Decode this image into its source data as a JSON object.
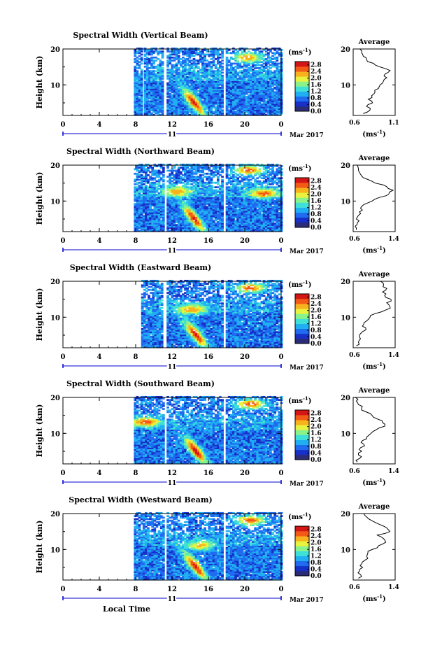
{
  "figure": {
    "xlabel": "Local Time",
    "date_label": "Mar 2017",
    "day_label": "11",
    "ylabel": "Height (km)",
    "avg_title": "Average",
    "colorbar_unit_base": "(ms",
    "colorbar_unit_exp": "-1",
    "colorbar_unit_close": ")",
    "avg_xunit_base": "(ms",
    "avg_xunit_exp": "-1",
    "avg_xunit_close": ")",
    "colorbar_ticks": [
      "2.8",
      "2.4",
      "2.0",
      "1.6",
      "1.2",
      "0.8",
      "0.4",
      "0.0"
    ],
    "colormap": [
      "#2b2c77",
      "#1730c8",
      "#1f6cf0",
      "#20b0f2",
      "#3fe0d8",
      "#8af28a",
      "#e9f23f",
      "#f7b21d",
      "#f35a16",
      "#d41616"
    ],
    "colors": {
      "axis": "#000000",
      "time_bar": "#0000cc",
      "background": "#ffffff"
    }
  },
  "chart_data": [
    {
      "type": "heatmap",
      "title": "Spectral Width (Vertical Beam)",
      "xlabel": "Local Time",
      "ylabel": "Height (km)",
      "x_ticks": [
        "0",
        "4",
        "8",
        "12",
        "16",
        "20",
        "0"
      ],
      "y_ticks": [
        "10",
        "20"
      ],
      "xlim": [
        0,
        24
      ],
      "ylim": [
        1.5,
        20
      ],
      "colorbar_range": [
        0.0,
        3.0
      ],
      "data_blocks_hours": [
        [
          7.8,
          8.7
        ],
        [
          8.9,
          11.0
        ],
        [
          11.4,
          17.6
        ],
        [
          17.9,
          24.0
        ]
      ],
      "hotspots": [
        {
          "t": 14.3,
          "h": 5.0,
          "value": 2.8,
          "label": "tilted streak"
        },
        {
          "t": 20.2,
          "h": 17.5,
          "value": 2.4,
          "label": "upper patch"
        }
      ],
      "average": {
        "title": "Average",
        "xlim": [
          0.6,
          1.1
        ],
        "xticks": [
          "0.6",
          "1.1"
        ],
        "y_ticks": [
          "10",
          "20"
        ],
        "height_km": [
          2,
          3,
          4,
          5,
          6,
          7,
          8,
          9,
          10,
          11,
          12,
          13,
          14,
          15,
          16,
          17,
          18,
          19,
          20
        ],
        "width_ms": [
          0.72,
          0.8,
          0.76,
          0.83,
          0.78,
          0.82,
          0.86,
          0.9,
          0.92,
          0.96,
          1.0,
          0.98,
          1.04,
          0.92,
          0.84,
          0.76,
          0.72,
          0.7,
          0.68
        ]
      }
    },
    {
      "type": "heatmap",
      "title": "Spectral Width (Northward Beam)",
      "xlabel": "Local Time",
      "ylabel": "Height (km)",
      "x_ticks": [
        "0",
        "4",
        "8",
        "12",
        "16",
        "20",
        "0"
      ],
      "y_ticks": [
        "10",
        "20"
      ],
      "xlim": [
        0,
        24
      ],
      "ylim": [
        1.5,
        20
      ],
      "colorbar_range": [
        0.0,
        3.0
      ],
      "data_blocks_hours": [
        [
          7.8,
          11.0
        ],
        [
          11.4,
          17.6
        ],
        [
          17.9,
          24.0
        ]
      ],
      "hotspots": [
        {
          "t": 14.3,
          "h": 5.0,
          "value": 2.8,
          "label": "tilted streak"
        },
        {
          "t": 12.5,
          "h": 12.5,
          "value": 2.4,
          "label": "tropopause layer"
        },
        {
          "t": 22.0,
          "h": 12.0,
          "value": 2.6,
          "label": "evening layer"
        },
        {
          "t": 20.3,
          "h": 18.5,
          "value": 2.6,
          "label": "upper patch"
        }
      ],
      "average": {
        "title": "Average",
        "xlim": [
          0.6,
          1.4
        ],
        "xticks": [
          "0.6",
          "1.4"
        ],
        "y_ticks": [
          "10",
          "20"
        ],
        "height_km": [
          2,
          3,
          4,
          5,
          6,
          7,
          8,
          9,
          10,
          11,
          12,
          13,
          14,
          15,
          16,
          17,
          18,
          19,
          20
        ],
        "width_ms": [
          0.66,
          0.64,
          0.68,
          0.66,
          0.7,
          0.72,
          0.74,
          0.8,
          0.96,
          1.1,
          1.28,
          1.36,
          1.24,
          1.02,
          0.88,
          0.76,
          0.72,
          0.7,
          0.68
        ]
      }
    },
    {
      "type": "heatmap",
      "title": "Spectral Width (Eastward Beam)",
      "xlabel": "Local Time",
      "ylabel": "Height (km)",
      "x_ticks": [
        "0",
        "4",
        "8",
        "12",
        "16",
        "20",
        "0"
      ],
      "y_ticks": [
        "10",
        "20"
      ],
      "xlim": [
        0,
        24
      ],
      "ylim": [
        1.5,
        20
      ],
      "colorbar_range": [
        0.0,
        3.0
      ],
      "data_blocks_hours": [
        [
          8.6,
          11.0
        ],
        [
          11.4,
          17.6
        ],
        [
          17.9,
          24.0
        ]
      ],
      "hotspots": [
        {
          "t": 14.5,
          "h": 5.0,
          "value": 2.8,
          "label": "tilted streak"
        },
        {
          "t": 14.0,
          "h": 12.0,
          "value": 2.4,
          "label": "tropopause layer"
        },
        {
          "t": 20.5,
          "h": 18.0,
          "value": 2.6,
          "label": "upper patch"
        }
      ],
      "average": {
        "title": "Average",
        "xlim": [
          0.6,
          1.4
        ],
        "xticks": [
          "0.6",
          "1.4"
        ],
        "y_ticks": [
          "10",
          "20"
        ],
        "height_km": [
          2,
          3,
          4,
          5,
          6,
          7,
          8,
          9,
          10,
          11,
          12,
          13,
          14,
          15,
          16,
          17,
          18,
          19,
          20
        ],
        "width_ms": [
          0.66,
          0.7,
          0.74,
          0.72,
          0.78,
          0.84,
          0.8,
          0.86,
          0.92,
          1.02,
          1.22,
          1.3,
          1.24,
          1.32,
          1.2,
          1.16,
          1.24,
          1.18,
          1.12
        ]
      }
    },
    {
      "type": "heatmap",
      "title": "Spectral Width (Southward Beam)",
      "xlabel": "Local Time",
      "ylabel": "Height (km)",
      "x_ticks": [
        "0",
        "4",
        "8",
        "12",
        "16",
        "20",
        "0"
      ],
      "y_ticks": [
        "10",
        "20"
      ],
      "xlim": [
        0,
        24
      ],
      "ylim": [
        1.5,
        20
      ],
      "colorbar_range": [
        0.0,
        3.0
      ],
      "data_blocks_hours": [
        [
          7.8,
          11.0
        ],
        [
          11.4,
          17.6
        ],
        [
          17.9,
          24.0
        ]
      ],
      "hotspots": [
        {
          "t": 14.5,
          "h": 5.0,
          "value": 2.9,
          "label": "tilted streak"
        },
        {
          "t": 9.0,
          "h": 13.0,
          "value": 2.6,
          "label": "morning layer"
        },
        {
          "t": 20.5,
          "h": 18.0,
          "value": 2.6,
          "label": "upper patch"
        }
      ],
      "average": {
        "title": "Average",
        "xlim": [
          0.6,
          1.4
        ],
        "xticks": [
          "0.6",
          "1.4"
        ],
        "y_ticks": [
          "10",
          "20"
        ],
        "height_km": [
          2,
          3,
          4,
          5,
          6,
          7,
          8,
          9,
          10,
          11,
          12,
          13,
          14,
          15,
          16,
          17,
          18,
          19,
          20
        ],
        "width_ms": [
          0.68,
          0.72,
          0.7,
          0.76,
          0.74,
          0.8,
          0.78,
          0.86,
          0.94,
          1.04,
          1.2,
          1.16,
          1.06,
          0.96,
          0.84,
          0.76,
          0.7,
          0.66,
          0.64
        ]
      }
    },
    {
      "type": "heatmap",
      "title": "Spectral Width (Westward Beam)",
      "xlabel": "Local Time",
      "ylabel": "Height (km)",
      "x_ticks": [
        "0",
        "4",
        "8",
        "12",
        "16",
        "20",
        "0"
      ],
      "y_ticks": [
        "10",
        "20"
      ],
      "xlim": [
        0,
        24
      ],
      "ylim": [
        1.5,
        20
      ],
      "colorbar_range": [
        0.0,
        3.0
      ],
      "data_blocks_hours": [
        [
          7.8,
          11.0
        ],
        [
          11.4,
          17.6
        ],
        [
          17.9,
          24.0
        ]
      ],
      "hotspots": [
        {
          "t": 14.5,
          "h": 5.0,
          "value": 2.8,
          "label": "tilted streak"
        },
        {
          "t": 20.5,
          "h": 18.0,
          "value": 2.6,
          "label": "upper patch"
        },
        {
          "t": 15.0,
          "h": 11.0,
          "value": 2.2,
          "label": "mid layer"
        }
      ],
      "average": {
        "title": "Average",
        "xlim": [
          0.6,
          1.4
        ],
        "xticks": [
          "0.6",
          "1.4"
        ],
        "y_ticks": [
          "10",
          "20"
        ],
        "height_km": [
          2,
          3,
          4,
          5,
          6,
          7,
          8,
          9,
          10,
          11,
          12,
          13,
          14,
          15,
          16,
          17,
          18,
          19,
          20
        ],
        "width_ms": [
          0.7,
          0.74,
          0.72,
          0.78,
          0.76,
          0.82,
          0.86,
          0.88,
          0.96,
          1.08,
          1.22,
          1.18,
          1.06,
          1.3,
          1.24,
          1.1,
          0.96,
          0.86,
          0.8
        ]
      }
    }
  ]
}
